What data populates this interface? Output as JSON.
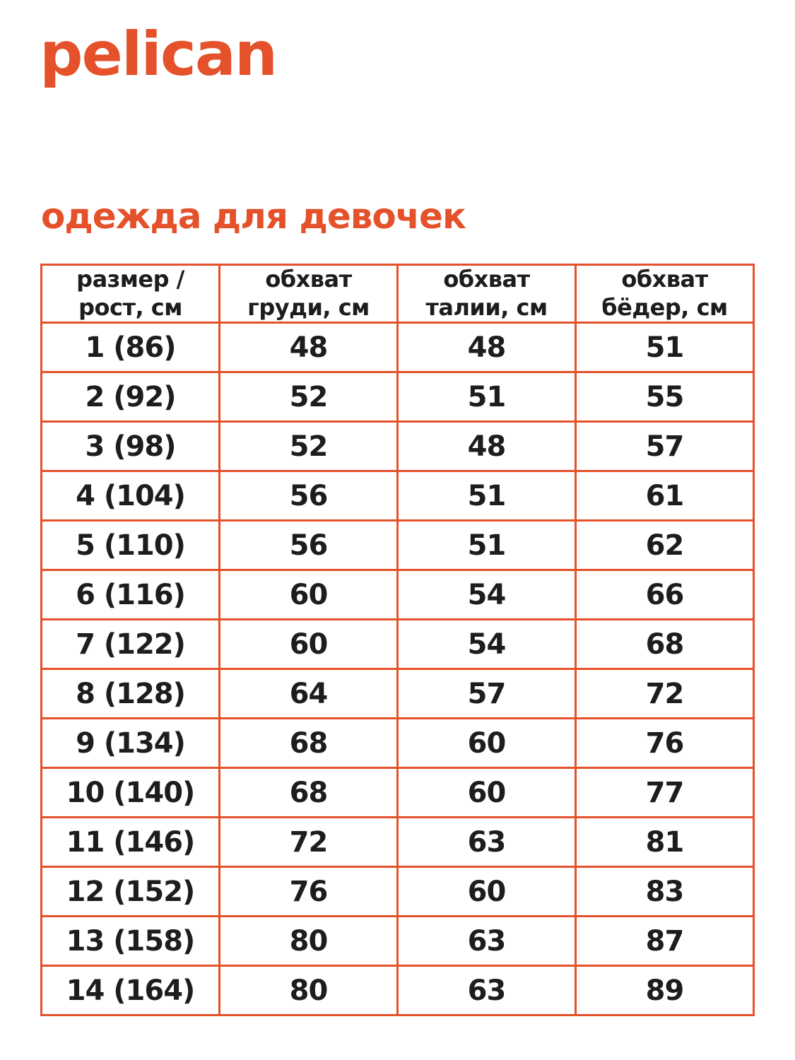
{
  "logo": "pelican",
  "accent_color": "#e4512a",
  "page": {
    "title": "одежда для девочек"
  },
  "table": {
    "headers": [
      "размер /\nрост, см",
      "обхват\nгруди, см",
      "обхват\nталии, см",
      "обхват\nбёдер, см"
    ],
    "rows": [
      [
        "1 (86)",
        "48",
        "48",
        "51"
      ],
      [
        "2 (92)",
        "52",
        "51",
        "55"
      ],
      [
        "3 (98)",
        "52",
        "48",
        "57"
      ],
      [
        "4 (104)",
        "56",
        "51",
        "61"
      ],
      [
        "5 (110)",
        "56",
        "51",
        "62"
      ],
      [
        "6 (116)",
        "60",
        "54",
        "66"
      ],
      [
        "7 (122)",
        "60",
        "54",
        "68"
      ],
      [
        "8 (128)",
        "64",
        "57",
        "72"
      ],
      [
        "9 (134)",
        "68",
        "60",
        "76"
      ],
      [
        "10 (140)",
        "68",
        "60",
        "77"
      ],
      [
        "11 (146)",
        "72",
        "63",
        "81"
      ],
      [
        "12 (152)",
        "76",
        "60",
        "83"
      ],
      [
        "13 (158)",
        "80",
        "63",
        "87"
      ],
      [
        "14 (164)",
        "80",
        "63",
        "89"
      ]
    ]
  }
}
